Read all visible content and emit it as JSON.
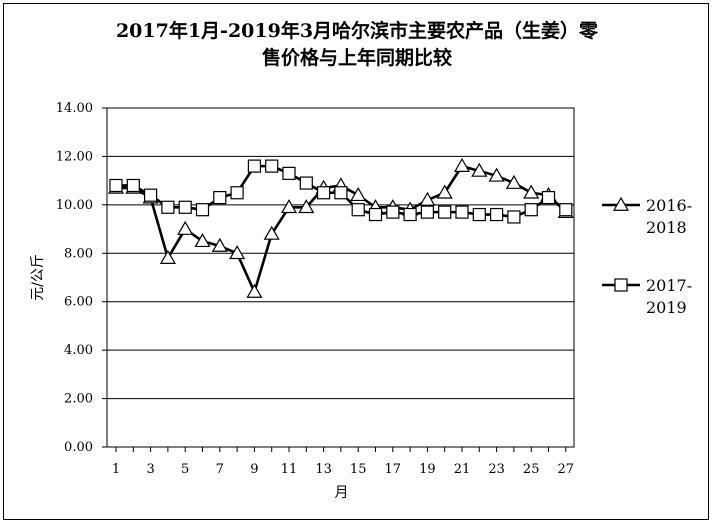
{
  "chart_data": {
    "type": "line",
    "title_line1": "2017年1月-2019年3月哈尔滨市主要农产品（生姜）零",
    "title_line2": "售价格与上年同期比较",
    "xlabel": "月",
    "ylabel": "元/公斤",
    "x": [
      1,
      2,
      3,
      4,
      5,
      6,
      7,
      8,
      9,
      10,
      11,
      12,
      13,
      14,
      15,
      16,
      17,
      18,
      19,
      20,
      21,
      22,
      23,
      24,
      25,
      26,
      27
    ],
    "x_tick_labels": [
      "1",
      "3",
      "5",
      "7",
      "9",
      "11",
      "13",
      "15",
      "17",
      "19",
      "21",
      "23",
      "25",
      "27"
    ],
    "y_tick_labels": [
      "0.00",
      "2.00",
      "4.00",
      "6.00",
      "8.00",
      "10.00",
      "12.00",
      "14.00"
    ],
    "ylim": [
      0,
      14
    ],
    "grid": "horizontal",
    "legend_position": "right",
    "series": [
      {
        "name_line1": "2016-",
        "name_line2": "2018",
        "marker": "triangle",
        "values": [
          10.7,
          10.7,
          10.3,
          7.8,
          9.0,
          8.5,
          8.3,
          8.0,
          6.4,
          8.8,
          9.9,
          9.9,
          10.7,
          10.8,
          10.4,
          9.9,
          9.9,
          9.8,
          10.2,
          10.5,
          11.6,
          11.4,
          11.2,
          10.9,
          10.5,
          10.4,
          9.7
        ]
      },
      {
        "name_line1": "2017-",
        "name_line2": "2019",
        "marker": "square",
        "values": [
          10.8,
          10.8,
          10.4,
          9.9,
          9.9,
          9.8,
          10.3,
          10.5,
          11.6,
          11.6,
          11.3,
          10.9,
          10.5,
          10.5,
          9.8,
          9.6,
          9.7,
          9.6,
          9.7,
          9.7,
          9.7,
          9.6,
          9.6,
          9.5,
          9.8,
          10.3,
          9.8
        ]
      }
    ]
  }
}
